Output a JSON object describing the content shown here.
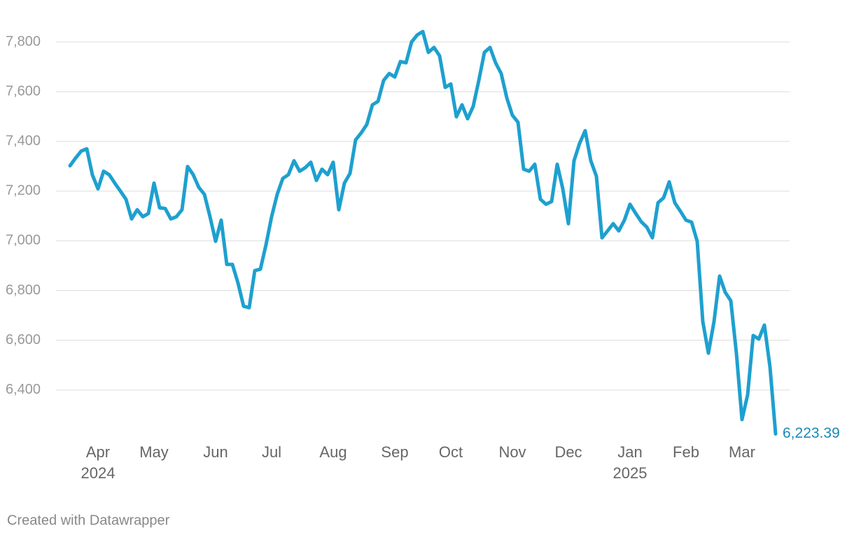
{
  "chart_data": {
    "type": "line",
    "categories": [
      null,
      null,
      null,
      null,
      null,
      "Apr 2024",
      null,
      null,
      null,
      null,
      null,
      null,
      null,
      null,
      null,
      "May",
      null,
      null,
      null,
      null,
      null,
      null,
      null,
      null,
      null,
      null,
      "Jun",
      null,
      null,
      null,
      null,
      null,
      null,
      null,
      null,
      null,
      "Jul",
      null,
      null,
      null,
      null,
      null,
      null,
      null,
      null,
      null,
      null,
      "Aug",
      null,
      null,
      null,
      null,
      null,
      null,
      null,
      null,
      null,
      null,
      "Sep",
      null,
      null,
      null,
      null,
      null,
      null,
      null,
      null,
      null,
      "Oct",
      null,
      null,
      null,
      null,
      null,
      null,
      null,
      null,
      null,
      null,
      "Nov",
      null,
      null,
      null,
      null,
      null,
      null,
      null,
      null,
      null,
      "Dec",
      null,
      null,
      null,
      null,
      null,
      null,
      null,
      null,
      null,
      null,
      "Jan 2025",
      null,
      null,
      null,
      null,
      null,
      null,
      null,
      null,
      null,
      "Feb",
      null,
      null,
      null,
      null,
      null,
      null,
      null,
      null,
      null,
      "Mar",
      null,
      null,
      null,
      null,
      null,
      null
    ],
    "series": [
      {
        "color": "#1ea0cf",
        "values": [
          7302,
          7333,
          7361,
          7370,
          7265,
          7209,
          7280,
          7266,
          7232,
          7200,
          7167,
          7088,
          7125,
          7097,
          7110,
          7232,
          7133,
          7130,
          7088,
          7097,
          7125,
          7299,
          7266,
          7215,
          7187,
          7097,
          6998,
          7083,
          6905,
          6905,
          6830,
          6737,
          6731,
          6880,
          6886,
          6984,
          7097,
          7187,
          7251,
          7266,
          7322,
          7280,
          7294,
          7316,
          7243,
          7288,
          7266,
          7316,
          7125,
          7232,
          7271,
          7406,
          7434,
          7468,
          7547,
          7561,
          7645,
          7673,
          7659,
          7721,
          7716,
          7800,
          7828,
          7842,
          7758,
          7778,
          7744,
          7617,
          7631,
          7499,
          7547,
          7491,
          7541,
          7645,
          7758,
          7778,
          7716,
          7673,
          7575,
          7505,
          7477,
          7288,
          7280,
          7308,
          7167,
          7147,
          7158,
          7308,
          7209,
          7069,
          7322,
          7392,
          7443,
          7322,
          7260,
          7012,
          7040,
          7069,
          7040,
          7083,
          7147,
          7111,
          7077,
          7055,
          7012,
          7153,
          7173,
          7237,
          7153,
          7119,
          7083,
          7075,
          6998,
          6675,
          6548,
          6675,
          6858,
          6793,
          6759,
          6548,
          6281,
          6380,
          6619,
          6605,
          6661,
          6492,
          6223.39
        ],
        "value_labels": [
          null,
          null,
          null,
          null,
          null,
          null,
          null,
          null,
          null,
          null,
          null,
          null,
          null,
          null,
          null,
          null,
          null,
          null,
          null,
          null,
          null,
          null,
          null,
          null,
          null,
          null,
          null,
          null,
          null,
          null,
          null,
          null,
          null,
          null,
          null,
          null,
          null,
          null,
          null,
          null,
          null,
          null,
          null,
          null,
          null,
          null,
          null,
          null,
          null,
          null,
          null,
          null,
          null,
          null,
          null,
          null,
          null,
          null,
          null,
          null,
          null,
          null,
          null,
          null,
          null,
          null,
          null,
          null,
          null,
          null,
          null,
          null,
          null,
          null,
          null,
          null,
          null,
          null,
          null,
          null,
          null,
          null,
          null,
          null,
          null,
          null,
          null,
          null,
          null,
          null,
          null,
          null,
          null,
          null,
          null,
          null,
          null,
          null,
          null,
          null,
          null,
          null,
          null,
          null,
          null,
          null,
          null,
          null,
          null,
          null,
          null,
          null,
          null,
          null,
          null,
          null,
          null,
          null,
          null,
          null,
          null,
          null,
          null,
          null,
          null,
          null,
          "6,223.39"
        ]
      }
    ],
    "ylim": [
      6200,
      7900
    ],
    "yticks": [
      {
        "value": 6400,
        "label": "6,400"
      },
      {
        "value": 6600,
        "label": "6,600"
      },
      {
        "value": 6800,
        "label": "6,800"
      },
      {
        "value": 7000,
        "label": "7,000"
      },
      {
        "value": 7200,
        "label": "7,200"
      },
      {
        "value": 7400,
        "label": "7,400"
      },
      {
        "value": 7600,
        "label": "7,600"
      },
      {
        "value": 7800,
        "label": "7,800"
      }
    ],
    "grid": true,
    "credit": "Created with Datawrapper"
  }
}
